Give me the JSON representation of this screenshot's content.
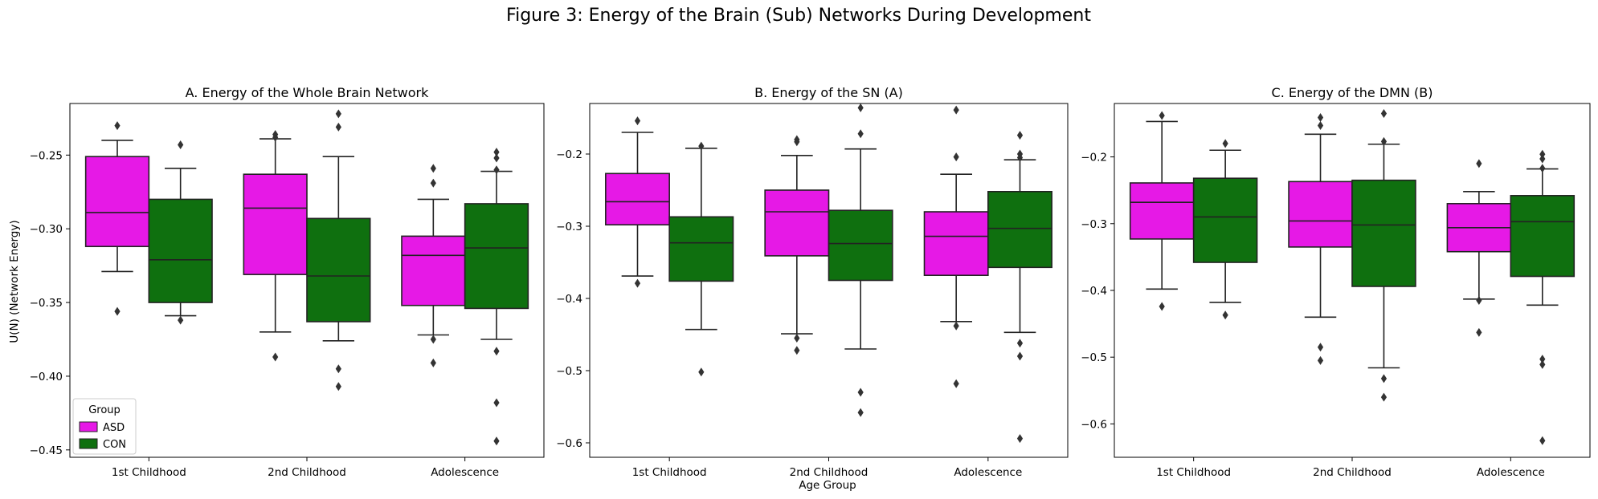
{
  "figure_title": "Figure 3: Energy of the Brain (Sub) Networks During Development",
  "y_label": "U(N) (Network Energy)",
  "x_label": "Age Group",
  "legend": {
    "title": "Group",
    "placement": "lower-left"
  },
  "colors": {
    "ASD": "#e619e6",
    "CON": "#0f700f",
    "line": "#222222",
    "frame": "#000000"
  },
  "chart_data": [
    {
      "type": "box",
      "title": "A. Energy of the Whole Brain Network",
      "categories": [
        "1st Childhood",
        "2nd Childhood",
        "Adolescence"
      ],
      "ylim": [
        -0.455,
        -0.215
      ],
      "yticks": [
        -0.45,
        -0.4,
        -0.35,
        -0.3,
        -0.25
      ],
      "ytick_labels": [
        "−0.45",
        "−0.40",
        "−0.35",
        "−0.30",
        "−0.25"
      ],
      "series": [
        {
          "name": "ASD",
          "boxes": [
            {
              "q1": -0.312,
              "median": -0.289,
              "q3": -0.251,
              "whislo": -0.329,
              "whishi": -0.24,
              "fliers": [
                -0.23,
                -0.356
              ]
            },
            {
              "q1": -0.331,
              "median": -0.286,
              "q3": -0.263,
              "whislo": -0.37,
              "whishi": -0.239,
              "fliers": [
                -0.236,
                -0.238,
                -0.387
              ]
            },
            {
              "q1": -0.352,
              "median": -0.318,
              "q3": -0.305,
              "whislo": -0.372,
              "whishi": -0.28,
              "fliers": [
                -0.259,
                -0.269,
                -0.375,
                -0.391
              ]
            }
          ]
        },
        {
          "name": "CON",
          "boxes": [
            {
              "q1": -0.35,
              "median": -0.321,
              "q3": -0.28,
              "whislo": -0.359,
              "whishi": -0.259,
              "fliers": [
                -0.243,
                -0.362
              ]
            },
            {
              "q1": -0.363,
              "median": -0.332,
              "q3": -0.293,
              "whislo": -0.376,
              "whishi": -0.251,
              "fliers": [
                -0.222,
                -0.231,
                -0.395,
                -0.407
              ]
            },
            {
              "q1": -0.354,
              "median": -0.313,
              "q3": -0.283,
              "whislo": -0.375,
              "whishi": -0.261,
              "fliers": [
                -0.248,
                -0.252,
                -0.26,
                -0.383,
                -0.418,
                -0.444
              ]
            }
          ]
        }
      ]
    },
    {
      "type": "box",
      "title": "B. Energy of the SN (A)",
      "categories": [
        "1st Childhood",
        "2nd Childhood",
        "Adolescence"
      ],
      "ylim": [
        -0.62,
        -0.13
      ],
      "yticks": [
        -0.6,
        -0.5,
        -0.4,
        -0.3,
        -0.2
      ],
      "ytick_labels": [
        "−0.6",
        "−0.5",
        "−0.4",
        "−0.3",
        "−0.2"
      ],
      "series": [
        {
          "name": "ASD",
          "boxes": [
            {
              "q1": -0.298,
              "median": -0.266,
              "q3": -0.227,
              "whislo": -0.369,
              "whishi": -0.17,
              "fliers": [
                -0.154,
                -0.379
              ]
            },
            {
              "q1": -0.341,
              "median": -0.28,
              "q3": -0.25,
              "whislo": -0.449,
              "whishi": -0.202,
              "fliers": [
                -0.18,
                -0.183,
                -0.455,
                -0.472
              ]
            },
            {
              "q1": -0.368,
              "median": -0.314,
              "q3": -0.28,
              "whislo": -0.432,
              "whishi": -0.228,
              "fliers": [
                -0.139,
                -0.204,
                -0.438,
                -0.518
              ]
            }
          ]
        },
        {
          "name": "CON",
          "boxes": [
            {
              "q1": -0.376,
              "median": -0.323,
              "q3": -0.287,
              "whislo": -0.443,
              "whishi": -0.192,
              "fliers": [
                -0.189,
                -0.502
              ]
            },
            {
              "q1": -0.375,
              "median": -0.324,
              "q3": -0.278,
              "whislo": -0.47,
              "whishi": -0.193,
              "fliers": [
                -0.136,
                -0.172,
                -0.53,
                -0.558
              ]
            },
            {
              "q1": -0.357,
              "median": -0.303,
              "q3": -0.252,
              "whislo": -0.447,
              "whishi": -0.208,
              "fliers": [
                -0.174,
                -0.2,
                -0.205,
                -0.462,
                -0.48,
                -0.594
              ]
            }
          ]
        }
      ]
    },
    {
      "type": "box",
      "title": "C. Energy of the DMN (B)",
      "categories": [
        "1st Childhood",
        "2nd Childhood",
        "Adolescence"
      ],
      "ylim": [
        -0.65,
        -0.12
      ],
      "yticks": [
        -0.6,
        -0.5,
        -0.4,
        -0.3,
        -0.2
      ],
      "ytick_labels": [
        "−0.6",
        "−0.5",
        "−0.4",
        "−0.3",
        "−0.2"
      ],
      "series": [
        {
          "name": "ASD",
          "boxes": [
            {
              "q1": -0.323,
              "median": -0.268,
              "q3": -0.239,
              "whislo": -0.398,
              "whishi": -0.147,
              "fliers": [
                -0.138,
                -0.424
              ]
            },
            {
              "q1": -0.335,
              "median": -0.296,
              "q3": -0.237,
              "whislo": -0.44,
              "whishi": -0.166,
              "fliers": [
                -0.141,
                -0.153,
                -0.485,
                -0.505
              ]
            },
            {
              "q1": -0.342,
              "median": -0.306,
              "q3": -0.27,
              "whislo": -0.413,
              "whishi": -0.252,
              "fliers": [
                -0.21,
                -0.415,
                -0.463
              ]
            }
          ]
        },
        {
          "name": "CON",
          "boxes": [
            {
              "q1": -0.358,
              "median": -0.29,
              "q3": -0.232,
              "whislo": -0.418,
              "whishi": -0.19,
              "fliers": [
                -0.18,
                -0.437
              ]
            },
            {
              "q1": -0.394,
              "median": -0.302,
              "q3": -0.235,
              "whislo": -0.516,
              "whishi": -0.181,
              "fliers": [
                -0.135,
                -0.177,
                -0.532,
                -0.56
              ]
            },
            {
              "q1": -0.379,
              "median": -0.297,
              "q3": -0.258,
              "whislo": -0.422,
              "whishi": -0.218,
              "fliers": [
                -0.196,
                -0.203,
                -0.217,
                -0.503,
                -0.511,
                -0.625
              ]
            }
          ]
        }
      ]
    }
  ]
}
